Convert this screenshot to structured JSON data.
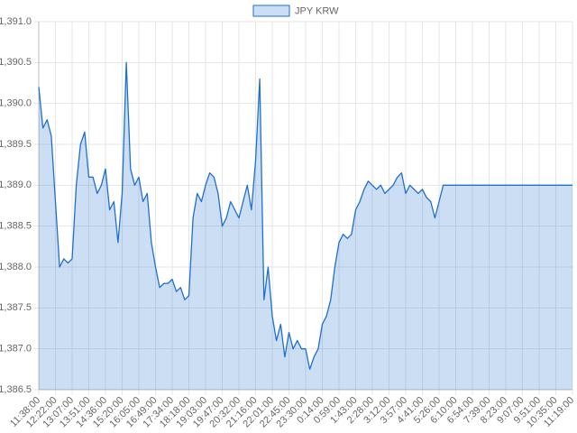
{
  "chart_data": {
    "type": "line",
    "categories": [
      "11:38:00",
      null,
      null,
      null,
      "12:22:00",
      null,
      null,
      null,
      "13:07:00",
      null,
      null,
      null,
      "13:51:00",
      null,
      null,
      null,
      "14:36:00",
      null,
      null,
      null,
      "15:20:00",
      null,
      null,
      null,
      "16:05:00",
      null,
      null,
      null,
      "16:49:00",
      null,
      null,
      null,
      "17:34:00",
      null,
      null,
      null,
      "18:18:00",
      null,
      null,
      null,
      "19:03:00",
      null,
      null,
      null,
      "19:47:00",
      null,
      null,
      null,
      "20:32:00",
      null,
      null,
      null,
      "21:16:00",
      null,
      null,
      null,
      "22:01:00",
      null,
      null,
      null,
      "22:45:00",
      null,
      null,
      null,
      "23:30:00",
      null,
      null,
      null,
      "0:14:00",
      null,
      null,
      null,
      "0:59:00",
      null,
      null,
      null,
      "1:43:00",
      null,
      null,
      null,
      "2:28:00",
      null,
      null,
      null,
      "3:12:00",
      null,
      null,
      null,
      "3:57:00",
      null,
      null,
      null,
      "4:41:00",
      null,
      null,
      null,
      "5:26:00",
      null,
      null,
      null,
      "6:10:00",
      null,
      null,
      null,
      "6:54:00",
      null,
      null,
      null,
      "7:39:00",
      null,
      null,
      null,
      "8:23:00",
      null,
      null,
      null,
      "9:07:00",
      null,
      null,
      null,
      "9:51:00",
      null,
      null,
      null,
      "10:35:00",
      null,
      null,
      null,
      "11:19:00"
    ],
    "series": [
      {
        "name": "JPY KRW",
        "color": "#1f6fcf",
        "fill": true,
        "values": [
          1390.2,
          1389.7,
          1389.8,
          1389.6,
          1388.8,
          1388.0,
          1388.1,
          1388.05,
          1388.1,
          1389.0,
          1389.5,
          1389.65,
          1389.1,
          1389.1,
          1388.9,
          1389.0,
          1389.2,
          1388.7,
          1388.8,
          1388.3,
          1388.9,
          1390.5,
          1389.2,
          1389.0,
          1389.1,
          1388.8,
          1388.9,
          1388.3,
          1388.0,
          1387.75,
          1387.8,
          1387.8,
          1387.85,
          1387.7,
          1387.75,
          1387.6,
          1387.65,
          1388.6,
          1388.9,
          1388.8,
          1389.0,
          1389.15,
          1389.1,
          1388.9,
          1388.5,
          1388.6,
          1388.8,
          1388.7,
          1388.6,
          1388.8,
          1389.0,
          1388.7,
          1389.3,
          1390.3,
          1387.6,
          1388.0,
          1387.4,
          1387.1,
          1387.3,
          1386.9,
          1387.2,
          1387.0,
          1387.1,
          1387.0,
          1387.0,
          1386.75,
          1386.9,
          1387.0,
          1387.3,
          1387.4,
          1387.6,
          1388.0,
          1388.3,
          1388.4,
          1388.35,
          1388.4,
          1388.7,
          1388.8,
          1388.95,
          1389.05,
          1389.0,
          1388.95,
          1389.0,
          1388.9,
          1388.95,
          1389.0,
          1389.1,
          1389.15,
          1388.9,
          1389.0,
          1388.95,
          1388.9,
          1388.95,
          1388.85,
          1388.8,
          1388.6,
          1388.8,
          1389.0,
          1389.0,
          1389.0,
          1389.0,
          1389.0,
          1389.0,
          1389.0,
          1389.0,
          1389.0,
          1389.0,
          1389.0,
          1389.0,
          1389.0,
          1389.0,
          1389.0,
          1389.0,
          1389.0,
          1389.0,
          1389.0,
          1389.0,
          1389.0,
          1389.0,
          1389.0,
          1389.0,
          1389.0,
          1389.0,
          1389.0,
          1389.0,
          1389.0,
          1389.0,
          1389.0,
          1389.0
        ]
      }
    ],
    "ylim": [
      1386.5,
      1391.0
    ],
    "yticks": [
      {
        "value": 1386.5,
        "label": "1,386.5"
      },
      {
        "value": 1387.0,
        "label": "1,387.0"
      },
      {
        "value": 1387.5,
        "label": "1,387.5"
      },
      {
        "value": 1388.0,
        "label": "1,388.0"
      },
      {
        "value": 1388.5,
        "label": "1,388.5"
      },
      {
        "value": 1389.0,
        "label": "1,389.0"
      },
      {
        "value": 1389.5,
        "label": "1,389.5"
      },
      {
        "value": 1390.0,
        "label": "1,390.0"
      },
      {
        "value": 1390.5,
        "label": "1,390.5"
      },
      {
        "value": 1391.0,
        "label": "1,391.0"
      }
    ],
    "grid": true,
    "legend": "top"
  }
}
